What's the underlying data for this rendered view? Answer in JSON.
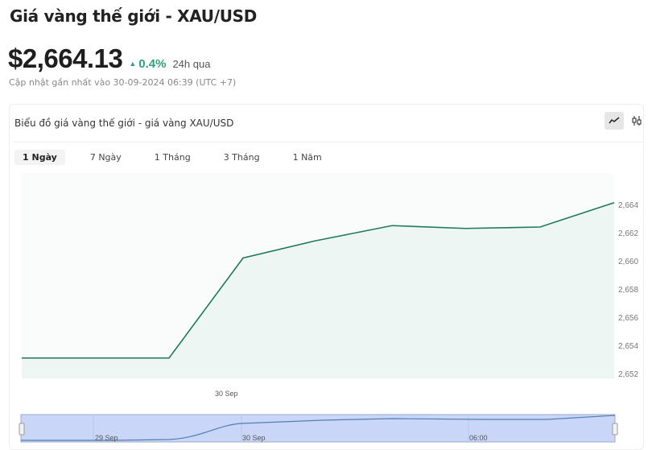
{
  "header": {
    "title": "Giá vàng thế giới - XAU/USD",
    "price": "$2,664.13",
    "change": "0.4%",
    "change_period": "24h qua",
    "updated": "Cập nhật gần nhất vào 30-09-2024 06:39 (UTC +7)",
    "up_color": "#33a07c"
  },
  "card": {
    "title": "Biểu đồ giá vàng thế giới - giá vàng XAU/USD",
    "tools": [
      "line-chart-icon",
      "candlestick-icon"
    ],
    "tabs": [
      {
        "label": "1 Ngày",
        "active": true
      },
      {
        "label": "7 Ngày"
      },
      {
        "label": "1 Tháng"
      },
      {
        "label": "3 Tháng"
      },
      {
        "label": "1 Năm"
      }
    ]
  },
  "chart_data": {
    "type": "area",
    "y": [
      2653.1,
      2653.1,
      2660.2,
      2661.4,
      2662.5,
      2662.3,
      2662.4,
      2664.13
    ],
    "x_tick_labels": [
      "30 Sep"
    ],
    "y_ticks": [
      "2,652",
      "2,654",
      "2,656",
      "2,658",
      "2,660",
      "2,662",
      "2,664"
    ],
    "ylim": [
      2652,
      2664.5
    ],
    "grid": false,
    "line_color": "#1f7a5c",
    "navigator": {
      "labels": [
        "29 Sep",
        "30 Sep",
        "06:00"
      ]
    }
  }
}
